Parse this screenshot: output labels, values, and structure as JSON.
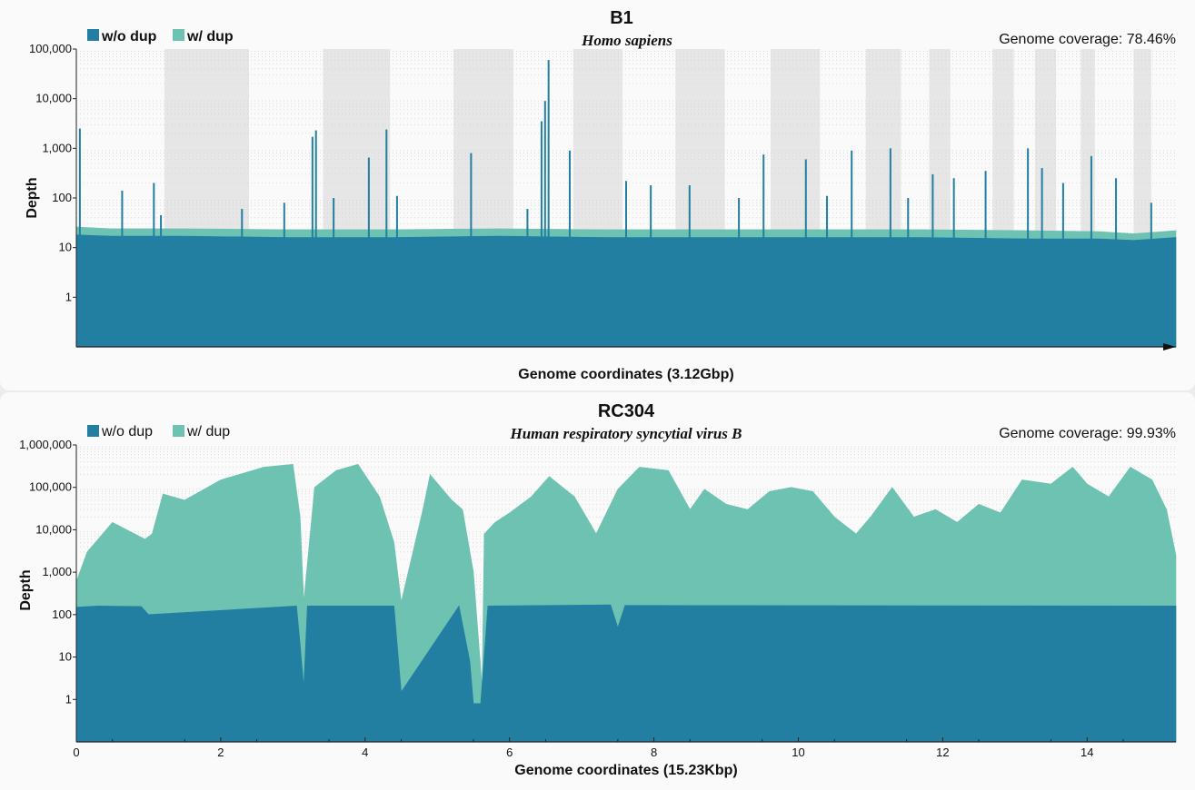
{
  "chart_data": [
    {
      "type": "area",
      "title": "B1",
      "subtitle": "Homo sapiens",
      "coverage_label": "Genome coverage: 78.46%",
      "xlabel": "Genome coordinates (3.12Gbp)",
      "ylabel": "Depth",
      "yscale": "log",
      "ylim": [
        0.1,
        100000
      ],
      "yticks": [
        "1",
        "10",
        "100",
        "1,000",
        "10,000",
        "100,000"
      ],
      "xlim": [
        0,
        3.12
      ],
      "xticks": [],
      "legend": [
        "w/o dup",
        "w/ dup"
      ],
      "legend_bold": true,
      "grid": true,
      "shaded_regions": [
        [
          0.25,
          0.49
        ],
        [
          0.7,
          0.89
        ],
        [
          1.07,
          1.24
        ],
        [
          1.41,
          1.55
        ],
        [
          1.7,
          1.84
        ],
        [
          1.97,
          2.11
        ],
        [
          2.24,
          2.34
        ],
        [
          2.42,
          2.48
        ],
        [
          2.6,
          2.66
        ],
        [
          2.72,
          2.78
        ],
        [
          2.85,
          2.89
        ],
        [
          3.0,
          3.05
        ]
      ],
      "series": [
        {
          "name": "w/o dup",
          "color": "#227fa2",
          "x": [
            0.0,
            0.1,
            0.3,
            0.6,
            0.9,
            1.2,
            1.5,
            1.8,
            2.1,
            2.4,
            2.7,
            2.9,
            3.0,
            3.12
          ],
          "values": [
            18,
            17,
            17,
            16,
            16,
            17,
            16,
            16,
            16,
            16,
            15,
            15,
            14,
            16
          ]
        },
        {
          "name": "w/ dup",
          "color": "#6dc2b2",
          "x": [
            0.0,
            0.1,
            0.3,
            0.6,
            0.9,
            1.2,
            1.5,
            1.8,
            2.1,
            2.4,
            2.7,
            2.9,
            3.0,
            3.12
          ],
          "values": [
            26,
            24,
            24,
            23,
            23,
            24,
            23,
            23,
            23,
            23,
            22,
            21,
            19,
            22
          ]
        }
      ],
      "spikes": {
        "x": [
          0.01,
          0.13,
          0.22,
          0.24,
          0.47,
          0.59,
          0.67,
          0.68,
          0.73,
          0.83,
          0.88,
          0.91,
          1.12,
          1.28,
          1.32,
          1.33,
          1.34,
          1.4,
          1.56,
          1.63,
          1.74,
          1.88,
          1.95,
          2.07,
          2.13,
          2.2,
          2.31,
          2.36,
          2.43,
          2.49,
          2.58,
          2.7,
          2.74,
          2.8,
          2.88,
          2.95,
          3.05
        ],
        "values": [
          2500,
          140,
          200,
          45,
          60,
          80,
          1700,
          2300,
          100,
          650,
          2400,
          110,
          800,
          60,
          3500,
          9000,
          60000,
          900,
          220,
          180,
          180,
          100,
          750,
          600,
          110,
          900,
          1000,
          100,
          300,
          250,
          350,
          1000,
          400,
          200,
          700,
          250,
          80
        ]
      }
    },
    {
      "type": "area",
      "title": "RC304",
      "subtitle": "Human respiratory syncytial virus B",
      "coverage_label": "Genome coverage: 99.93%",
      "xlabel": "Genome coordinates (15.23Kbp)",
      "ylabel": "Depth",
      "yscale": "log",
      "ylim": [
        0.1,
        1000000
      ],
      "yticks": [
        "1",
        "10",
        "100",
        "1,000",
        "10,000",
        "100,000",
        "1,000,000"
      ],
      "xlim": [
        0,
        15.23
      ],
      "xticks": [
        "0",
        "2",
        "4",
        "6",
        "8",
        "10",
        "12",
        "14"
      ],
      "legend": [
        "w/o dup",
        "w/ dup"
      ],
      "legend_bold": false,
      "grid": true,
      "shaded_regions": [],
      "series": [
        {
          "name": "w/o dup",
          "color": "#227fa2",
          "x": [
            0.0,
            0.3,
            0.9,
            1.0,
            3.05,
            3.1,
            3.15,
            3.2,
            4.4,
            4.5,
            5.3,
            5.45,
            5.5,
            5.6,
            5.7,
            7.4,
            7.5,
            7.6,
            15.23
          ],
          "values": [
            150,
            160,
            155,
            100,
            160,
            20,
            2,
            160,
            160,
            1.5,
            160,
            8,
            0.8,
            0.8,
            160,
            170,
            50,
            165,
            160
          ]
        },
        {
          "name": "w/ dup",
          "color": "#6dc2b2",
          "x": [
            0.0,
            0.15,
            0.5,
            0.95,
            1.05,
            1.2,
            1.5,
            2.0,
            2.6,
            3.0,
            3.1,
            3.15,
            3.3,
            3.6,
            3.9,
            4.2,
            4.4,
            4.5,
            4.8,
            4.9,
            5.2,
            5.35,
            5.5,
            5.62,
            5.65,
            5.8,
            6.0,
            6.3,
            6.55,
            6.9,
            7.2,
            7.5,
            7.8,
            8.2,
            8.5,
            8.7,
            9.0,
            9.3,
            9.6,
            9.9,
            10.2,
            10.5,
            10.8,
            11.0,
            11.3,
            11.6,
            11.9,
            12.2,
            12.5,
            12.8,
            13.1,
            13.5,
            13.8,
            14.0,
            14.3,
            14.6,
            14.9,
            15.1,
            15.23
          ],
          "values": [
            600,
            3000,
            15000,
            6000,
            8000,
            70000,
            50000,
            150000,
            300000,
            350000,
            20000,
            200,
            100000,
            250000,
            350000,
            60000,
            5000,
            200,
            30000,
            200000,
            50000,
            30000,
            1000,
            2,
            8000,
            15000,
            25000,
            60000,
            180000,
            60000,
            8000,
            90000,
            300000,
            250000,
            30000,
            90000,
            40000,
            30000,
            80000,
            100000,
            80000,
            20000,
            8000,
            20000,
            100000,
            20000,
            30000,
            15000,
            40000,
            25000,
            150000,
            120000,
            300000,
            120000,
            60000,
            300000,
            150000,
            30000,
            2500
          ]
        }
      ]
    }
  ]
}
